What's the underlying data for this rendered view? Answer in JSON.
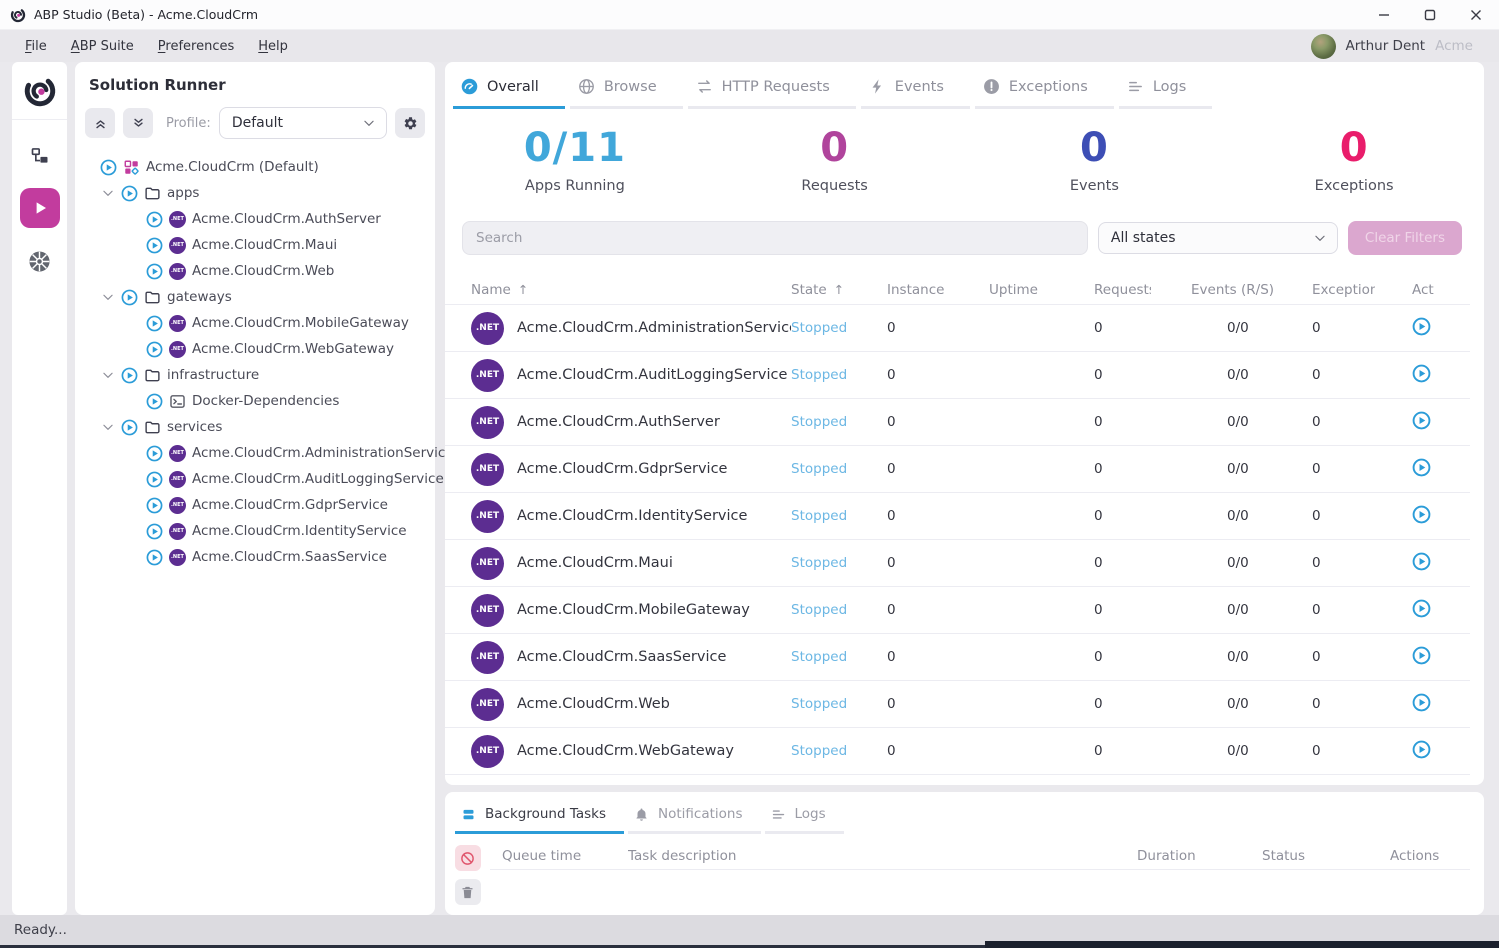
{
  "window": {
    "title": "ABP Studio (Beta) - Acme.CloudCrm",
    "menu": [
      "File",
      "ABP Suite",
      "Preferences",
      "Help"
    ],
    "user": {
      "name": "Arthur Dent",
      "tenant": "Acme"
    }
  },
  "activity_bar": {
    "items": [
      {
        "icon": "abp-logo",
        "active": false
      },
      {
        "icon": "solution-explorer",
        "active": false
      },
      {
        "icon": "solution-runner",
        "active": true
      },
      {
        "icon": "kubernetes",
        "active": false
      }
    ]
  },
  "solution_runner": {
    "title": "Solution Runner",
    "profile_label": "Profile:",
    "profile_value": "Default",
    "tree": [
      {
        "label": "Acme.CloudCrm (Default)",
        "type": "solution",
        "level": 0
      },
      {
        "label": "apps",
        "type": "folder",
        "level": 1,
        "expanded": true
      },
      {
        "label": "Acme.CloudCrm.AuthServer",
        "type": "dotnet",
        "level": 2
      },
      {
        "label": "Acme.CloudCrm.Maui",
        "type": "dotnet",
        "level": 2
      },
      {
        "label": "Acme.CloudCrm.Web",
        "type": "dotnet",
        "level": 2
      },
      {
        "label": "gateways",
        "type": "folder",
        "level": 1,
        "expanded": true
      },
      {
        "label": "Acme.CloudCrm.MobileGateway",
        "type": "dotnet",
        "level": 2
      },
      {
        "label": "Acme.CloudCrm.WebGateway",
        "type": "dotnet",
        "level": 2
      },
      {
        "label": "infrastructure",
        "type": "folder",
        "level": 1,
        "expanded": true
      },
      {
        "label": "Docker-Dependencies",
        "type": "terminal",
        "level": 2
      },
      {
        "label": "services",
        "type": "folder",
        "level": 1,
        "expanded": true
      },
      {
        "label": "Acme.CloudCrm.AdministrationService",
        "type": "dotnet",
        "level": 2
      },
      {
        "label": "Acme.CloudCrm.AuditLoggingService",
        "type": "dotnet",
        "level": 2
      },
      {
        "label": "Acme.CloudCrm.GdprService",
        "type": "dotnet",
        "level": 2
      },
      {
        "label": "Acme.CloudCrm.IdentityService",
        "type": "dotnet",
        "level": 2
      },
      {
        "label": "Acme.CloudCrm.SaasService",
        "type": "dotnet",
        "level": 2
      }
    ]
  },
  "main": {
    "tabs": [
      {
        "label": "Overall",
        "icon": "gauge",
        "active": true
      },
      {
        "label": "Browse",
        "icon": "globe",
        "active": false
      },
      {
        "label": "HTTP Requests",
        "icon": "swap",
        "active": false
      },
      {
        "label": "Events",
        "icon": "bolt",
        "active": false
      },
      {
        "label": "Exceptions",
        "icon": "alert",
        "active": false
      },
      {
        "label": "Logs",
        "icon": "lines",
        "active": false
      }
    ],
    "stats": [
      {
        "value": "0/11",
        "label": "Apps Running",
        "color": "#41a7da"
      },
      {
        "value": "0",
        "label": "Requests",
        "color": "#b0449c"
      },
      {
        "value": "0",
        "label": "Events",
        "color": "#3d4eb5"
      },
      {
        "value": "0",
        "label": "Exceptions",
        "color": "#e91d6b"
      }
    ],
    "search_placeholder": "Search",
    "state_filter": "All states",
    "clear_filters": "Clear Filters",
    "table": {
      "columns": [
        {
          "label": "Name",
          "sorted": true
        },
        {
          "label": "State",
          "sorted": true
        },
        {
          "label": "Instance"
        },
        {
          "label": "Uptime"
        },
        {
          "label": "Requests"
        },
        {
          "label": "Events (R/S)"
        },
        {
          "label": "Exceptions"
        },
        {
          "label": "Act"
        }
      ],
      "rows": [
        {
          "name": "Acme.CloudCrm.AdministrationService",
          "state": "Stopped",
          "instance": "0",
          "uptime": "",
          "requests": "0",
          "events": "0/0",
          "exceptions": "0"
        },
        {
          "name": "Acme.CloudCrm.AuditLoggingService",
          "state": "Stopped",
          "instance": "0",
          "uptime": "",
          "requests": "0",
          "events": "0/0",
          "exceptions": "0"
        },
        {
          "name": "Acme.CloudCrm.AuthServer",
          "state": "Stopped",
          "instance": "0",
          "uptime": "",
          "requests": "0",
          "events": "0/0",
          "exceptions": "0"
        },
        {
          "name": "Acme.CloudCrm.GdprService",
          "state": "Stopped",
          "instance": "0",
          "uptime": "",
          "requests": "0",
          "events": "0/0",
          "exceptions": "0"
        },
        {
          "name": "Acme.CloudCrm.IdentityService",
          "state": "Stopped",
          "instance": "0",
          "uptime": "",
          "requests": "0",
          "events": "0/0",
          "exceptions": "0"
        },
        {
          "name": "Acme.CloudCrm.Maui",
          "state": "Stopped",
          "instance": "0",
          "uptime": "",
          "requests": "0",
          "events": "0/0",
          "exceptions": "0"
        },
        {
          "name": "Acme.CloudCrm.MobileGateway",
          "state": "Stopped",
          "instance": "0",
          "uptime": "",
          "requests": "0",
          "events": "0/0",
          "exceptions": "0"
        },
        {
          "name": "Acme.CloudCrm.SaasService",
          "state": "Stopped",
          "instance": "0",
          "uptime": "",
          "requests": "0",
          "events": "0/0",
          "exceptions": "0"
        },
        {
          "name": "Acme.CloudCrm.Web",
          "state": "Stopped",
          "instance": "0",
          "uptime": "",
          "requests": "0",
          "events": "0/0",
          "exceptions": "0"
        },
        {
          "name": "Acme.CloudCrm.WebGateway",
          "state": "Stopped",
          "instance": "0",
          "uptime": "",
          "requests": "0",
          "events": "0/0",
          "exceptions": "0"
        }
      ]
    }
  },
  "bottom_panel": {
    "tabs": [
      {
        "label": "Background Tasks",
        "icon": "stack",
        "active": true
      },
      {
        "label": "Notifications",
        "icon": "bell",
        "active": false
      },
      {
        "label": "Logs",
        "icon": "lines",
        "active": false
      }
    ],
    "columns": [
      "Queue time",
      "Task description",
      "Duration",
      "Status",
      "Actions"
    ]
  },
  "status_bar": {
    "text": "Ready..."
  },
  "misc": {
    "net_badge": ".NET"
  },
  "colors": {
    "accent_blue": "#2b9cd8",
    "magenta": "#c23c9e",
    "net_purple": "#5c2d91",
    "stopped_state": "#6cb7e4"
  }
}
